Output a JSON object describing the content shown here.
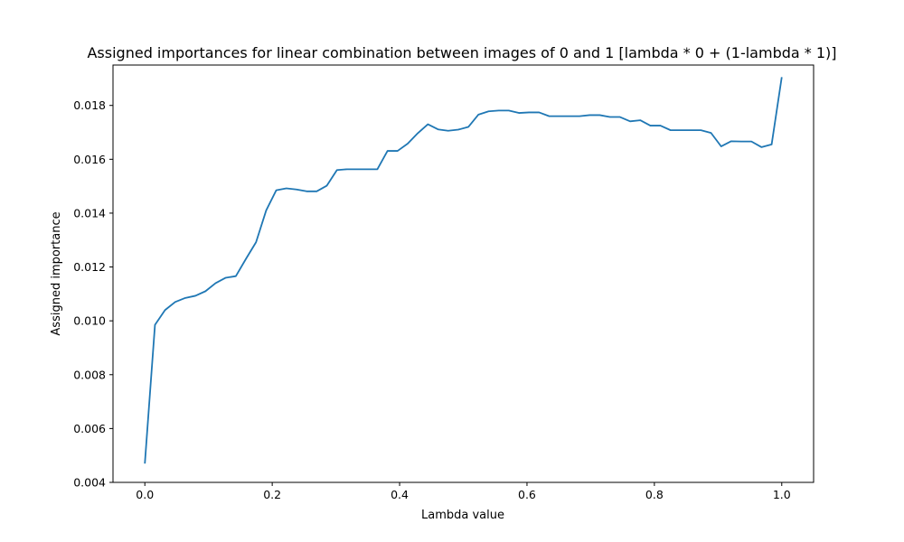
{
  "chart_data": {
    "type": "line",
    "title": "Assigned importances for linear combination between images of 0 and 1 [lambda * 0 + (1-lambda * 1)]",
    "xlabel": "Lambda value",
    "ylabel": "Assigned importance",
    "xlim": [
      -0.05,
      1.05
    ],
    "ylim": [
      0.004,
      0.0195
    ],
    "xticks": [
      0.0,
      0.2,
      0.4,
      0.6,
      0.8,
      1.0
    ],
    "xtick_labels": [
      "0.0",
      "0.2",
      "0.4",
      "0.6",
      "0.8",
      "1.0"
    ],
    "yticks": [
      0.004,
      0.006,
      0.008,
      0.01,
      0.012,
      0.014,
      0.016,
      0.018
    ],
    "ytick_labels": [
      "0.004",
      "0.006",
      "0.008",
      "0.010",
      "0.012",
      "0.014",
      "0.016",
      "0.018"
    ],
    "grid": false,
    "color": "#1f77b4",
    "series": [
      {
        "x": [
          0.0,
          0.0159,
          0.0317,
          0.0476,
          0.0635,
          0.0794,
          0.0952,
          0.1111,
          0.127,
          0.1429,
          0.1587,
          0.1746,
          0.1905,
          0.2063,
          0.2222,
          0.2381,
          0.254,
          0.2698,
          0.2857,
          0.3016,
          0.3175,
          0.3333,
          0.3492,
          0.3651,
          0.381,
          0.3968,
          0.4127,
          0.4286,
          0.4444,
          0.4603,
          0.4762,
          0.4921,
          0.5079,
          0.5238,
          0.5397,
          0.5556,
          0.5714,
          0.5873,
          0.6032,
          0.619,
          0.6349,
          0.6508,
          0.6667,
          0.6825,
          0.6984,
          0.7143,
          0.7302,
          0.746,
          0.7619,
          0.7778,
          0.7937,
          0.8095,
          0.8254,
          0.8413,
          0.8571,
          0.873,
          0.8889,
          0.9048,
          0.9206,
          0.9365,
          0.9524,
          0.9683,
          0.9841,
          1.0
        ],
        "values": [
          0.0047,
          0.00985,
          0.0104,
          0.0107,
          0.01085,
          0.01093,
          0.0111,
          0.0114,
          0.0116,
          0.01166,
          0.0123,
          0.01292,
          0.0141,
          0.01485,
          0.01492,
          0.01488,
          0.01481,
          0.01481,
          0.01502,
          0.0156,
          0.01563,
          0.01563,
          0.01563,
          0.01563,
          0.01631,
          0.01631,
          0.01658,
          0.01697,
          0.0173,
          0.01711,
          0.01706,
          0.0171,
          0.0172,
          0.01766,
          0.01778,
          0.01781,
          0.01781,
          0.01772,
          0.01774,
          0.01774,
          0.0176,
          0.0176,
          0.0176,
          0.0176,
          0.01764,
          0.01764,
          0.01757,
          0.01757,
          0.01741,
          0.01745,
          0.01725,
          0.01725,
          0.01708,
          0.01708,
          0.01708,
          0.01708,
          0.01698,
          0.01648,
          0.01667,
          0.01666,
          0.01666,
          0.01645,
          0.01655,
          0.01905
        ]
      }
    ]
  }
}
